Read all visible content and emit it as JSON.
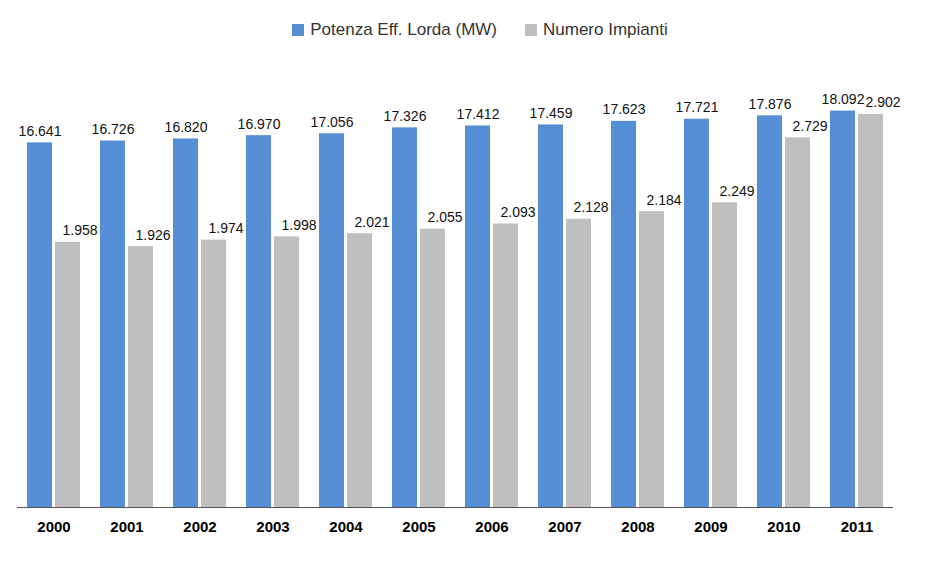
{
  "chart_data": {
    "type": "bar",
    "categories": [
      "2000",
      "2001",
      "2002",
      "2003",
      "2004",
      "2005",
      "2006",
      "2007",
      "2008",
      "2009",
      "2010",
      "2011"
    ],
    "series": [
      {
        "name": "Potenza Eff. Lorda (MW)",
        "color": "#558ed5",
        "values": [
          16641,
          16726,
          16820,
          16970,
          17056,
          17326,
          17412,
          17459,
          17623,
          17721,
          17876,
          18092
        ],
        "value_labels": [
          "16.641",
          "16.726",
          "16.820",
          "16.970",
          "17.056",
          "17.326",
          "17.412",
          "17.459",
          "17.623",
          "17.721",
          "17.876",
          "18.092"
        ]
      },
      {
        "name": "Numero Impianti",
        "color": "#bfbfbf",
        "axis": "y2",
        "values": [
          1958,
          1926,
          1974,
          1998,
          2021,
          2055,
          2093,
          2128,
          2184,
          2249,
          2729,
          2902
        ],
        "value_labels": [
          "1.958",
          "1.926",
          "1.974",
          "1.998",
          "2.021",
          "2.055",
          "2.093",
          "2.128",
          "2.184",
          "2.249",
          "2.729",
          "2.902"
        ]
      }
    ],
    "ylim": [
      0,
      20400
    ],
    "y2lim": [
      0,
      3300
    ],
    "data_labels": true,
    "tick_labels": "x",
    "legend": "top"
  }
}
